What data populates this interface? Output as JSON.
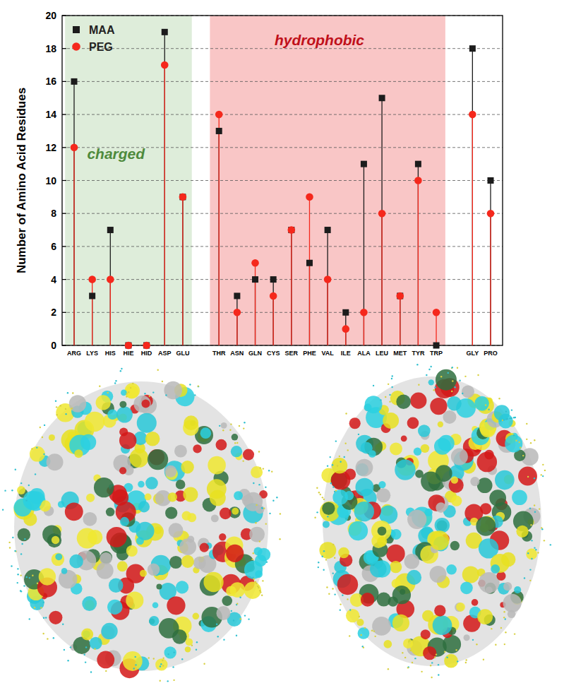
{
  "chart_data": {
    "type": "lollipop",
    "y_label": "Number of Amino Acid Residues",
    "categories": [
      "ARG",
      "LYS",
      "HIS",
      "HIE",
      "HID",
      "ASP",
      "GLU",
      null,
      "THR",
      "ASN",
      "GLN",
      "CYS",
      "SER",
      "PHE",
      "VAL",
      "ILE",
      "ALA",
      "LEU",
      "MET",
      "TYR",
      "TRP",
      null,
      "GLY",
      "PRO"
    ],
    "series": [
      {
        "name": "MAA",
        "color": "#1c1c1c",
        "marker": "square",
        "values": [
          16,
          3,
          7,
          0,
          0,
          19,
          9,
          null,
          13,
          3,
          4,
          4,
          7,
          5,
          7,
          2,
          11,
          15,
          3,
          11,
          0,
          null,
          18,
          10
        ]
      },
      {
        "name": "PEG",
        "color": "#f5281c",
        "marker": "circle",
        "values": [
          12,
          4,
          4,
          0,
          0,
          17,
          9,
          null,
          14,
          2,
          5,
          3,
          7,
          9,
          4,
          1,
          2,
          8,
          3,
          10,
          2,
          null,
          14,
          8
        ]
      }
    ],
    "annotations": [
      {
        "text": "charged",
        "from": "ARG",
        "to": "GLU",
        "color": "#4e8a3c"
      },
      {
        "text": "hydrophobic",
        "from": "THR",
        "to": "TRP",
        "color": "#c0101a"
      }
    ],
    "ylim": [
      0,
      20
    ],
    "yticks": [
      0,
      2,
      4,
      6,
      8,
      10,
      12,
      14,
      16,
      18,
      20
    ],
    "grid": true,
    "legend": "upper left"
  }
}
